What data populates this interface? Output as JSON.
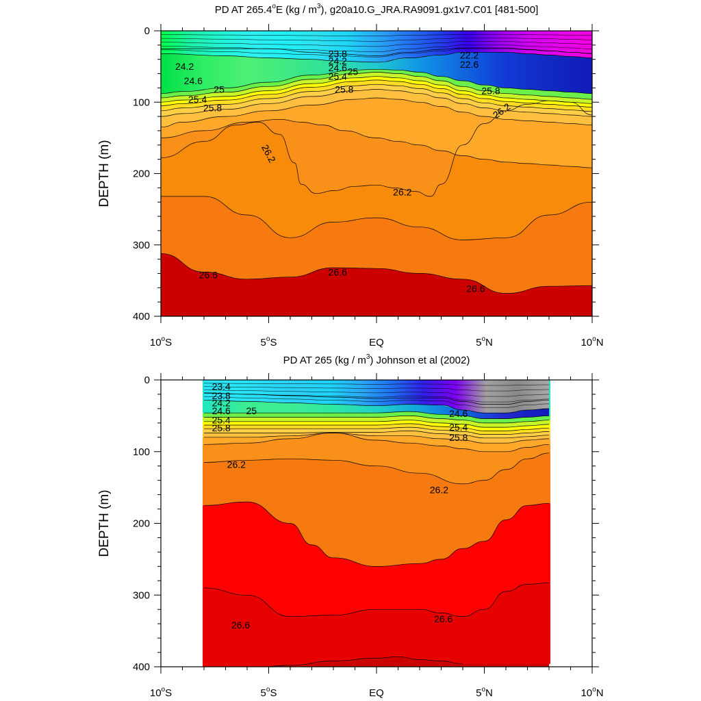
{
  "chart_data": [
    {
      "type": "contour",
      "title": "PD AT 265.4°E (kg / m³), g20a10.G_JRA.RA9091.gx1v7.C01 [481-500]",
      "title_parts": {
        "pre": "PD AT 265.4",
        "deg": "o",
        "mid": "E (kg / m",
        "sup": "3",
        "post": "), g20a10.G_JRA.RA9091.gx1v7.C01 [481-500]"
      },
      "ylabel": "DEPTH (m)",
      "xlim": [
        -10,
        10
      ],
      "ylim": [
        400,
        0
      ],
      "yticks": [
        "0",
        "100",
        "200",
        "300",
        "400"
      ],
      "xticks": [
        {
          "num": "10",
          "deg": "o",
          "hemi": "S"
        },
        {
          "num": "5",
          "deg": "o",
          "hemi": "S"
        },
        {
          "num": "EQ",
          "deg": "",
          "hemi": ""
        },
        {
          "num": "5",
          "deg": "o",
          "hemi": "N"
        },
        {
          "num": "10",
          "deg": "o",
          "hemi": "N"
        }
      ],
      "data_xrange": [
        -10,
        10
      ],
      "surface_lines": [
        {
          "x": [
            -10,
            -7,
            -5,
            -3,
            -2,
            0,
            1.5,
            3,
            4,
            5,
            6,
            7,
            8,
            9,
            10
          ],
          "y": [
            25,
            25,
            25,
            30,
            32,
            35,
            30,
            26,
            24,
            24,
            24,
            26,
            28,
            30,
            32
          ]
        },
        {
          "x": [
            -10,
            -7,
            -5,
            -3,
            -2,
            0,
            1.5,
            3,
            4,
            5,
            6,
            7,
            8,
            9,
            10
          ],
          "y": [
            32,
            35,
            38,
            40,
            42,
            44,
            38,
            34,
            30,
            30,
            30,
            32,
            34,
            36,
            38
          ]
        }
      ],
      "boundaries": [
        {
          "x": [
            -10,
            -9,
            -7,
            -5,
            -3,
            -1,
            0,
            1,
            2,
            3,
            4,
            5,
            6,
            7,
            8,
            9,
            10
          ],
          "y": [
            88,
            85,
            80,
            72,
            62,
            55,
            54,
            55,
            58,
            64,
            70,
            76,
            80,
            82,
            84,
            86,
            88
          ]
        },
        {
          "x": [
            -10,
            -9,
            -7,
            -5,
            -3,
            -1,
            0,
            1,
            2,
            3,
            4,
            5,
            6,
            7,
            8,
            9,
            10
          ],
          "y": [
            94,
            91,
            86,
            78,
            68,
            60,
            58,
            60,
            64,
            70,
            78,
            84,
            88,
            90,
            92,
            94,
            96
          ]
        },
        {
          "x": [
            -10,
            -9,
            -7,
            -5,
            -3,
            -1,
            0,
            1,
            2,
            3,
            4,
            5,
            6,
            7,
            8,
            9,
            10
          ],
          "y": [
            100,
            97,
            92,
            84,
            74,
            66,
            64,
            66,
            70,
            76,
            84,
            90,
            94,
            96,
            98,
            100,
            102
          ]
        },
        {
          "x": [
            -10,
            -9,
            -7,
            -5,
            -3,
            -1,
            0,
            1,
            2,
            3,
            4,
            5,
            6,
            7,
            8,
            9,
            10
          ],
          "y": [
            105,
            102,
            97,
            89,
            79,
            71,
            69,
            71,
            75,
            81,
            89,
            95,
            99,
            101,
            103,
            105,
            107
          ]
        },
        {
          "x": [
            -10,
            -9,
            -7,
            -5,
            -3,
            -1,
            0,
            1,
            2,
            3,
            4,
            5,
            6,
            7,
            8,
            9,
            10
          ],
          "y": [
            112,
            108,
            103,
            95,
            85,
            77,
            75,
            77,
            81,
            87,
            95,
            101,
            105,
            107,
            109,
            111,
            113
          ]
        },
        {
          "x": [
            -10,
            -9,
            -7,
            -5,
            -3,
            -1,
            0,
            1,
            2,
            3,
            4,
            5,
            6,
            7,
            8,
            9,
            10
          ],
          "y": [
            120,
            116,
            110,
            102,
            92,
            84,
            82,
            84,
            88,
            94,
            102,
            108,
            112,
            114,
            116,
            118,
            120
          ]
        },
        {
          "x": [
            -10,
            -9,
            -7,
            -5,
            -3,
            -1,
            0,
            1,
            2,
            3,
            4,
            5,
            6,
            7,
            8,
            9,
            10
          ],
          "y": [
            135,
            128,
            120,
            112,
            104,
            96,
            94,
            96,
            100,
            106,
            114,
            120,
            124,
            126,
            128,
            130,
            132
          ]
        },
        {
          "x": [
            -10,
            -8,
            -6,
            -4.5,
            -3.5,
            -2.5,
            -1.5,
            0,
            1,
            2,
            3,
            4,
            5,
            6,
            7,
            8,
            9,
            10
          ],
          "y": [
            150,
            140,
            128,
            124,
            128,
            132,
            140,
            150,
            155,
            160,
            168,
            175,
            180,
            184,
            186,
            188,
            190,
            192
          ]
        },
        {
          "x": [
            -10,
            -8,
            -6.5,
            -5.5,
            -4.5,
            -3.8,
            -3.5,
            -2.8,
            -2,
            -1,
            0,
            0.8,
            1.8,
            2.5,
            3,
            4,
            5,
            6,
            7,
            8,
            9,
            10
          ],
          "y": [
            178,
            155,
            132,
            128,
            145,
            185,
            215,
            228,
            224,
            218,
            216,
            220,
            225,
            232,
            215,
            160,
            130,
            112,
            103,
            98,
            100,
            118
          ]
        },
        {
          "x": [
            -10,
            -8,
            -6,
            -4,
            -2,
            0,
            2,
            4,
            6,
            8,
            10
          ],
          "y": [
            232,
            232,
            258,
            290,
            268,
            262,
            275,
            293,
            290,
            258,
            240
          ]
        },
        {
          "x": [
            -10,
            -8,
            -6,
            -4,
            -2,
            0,
            2,
            4,
            6,
            8,
            10
          ],
          "y": [
            312,
            338,
            348,
            345,
            332,
            333,
            340,
            348,
            368,
            358,
            357
          ]
        }
      ],
      "fills": [
        "#1EE8C4",
        "#6BEF4A",
        "#C8F52A",
        "#FFFF00",
        "#FFDD22",
        "#FFCF47",
        "#FFBF3F",
        "#FFA82A",
        "#F9901A",
        "#F88B0A",
        "#F67A10",
        "#F24B05",
        "#FE0000",
        "#E60000",
        "#CC0000"
      ],
      "contour_labels": [
        {
          "text": "24.2",
          "x": -8.9,
          "y": 50
        },
        {
          "text": "24.6",
          "x": -8.5,
          "y": 70
        },
        {
          "text": "25",
          "x": -7.3,
          "y": 82
        },
        {
          "text": "25.4",
          "x": -8.3,
          "y": 96
        },
        {
          "text": "25.8",
          "x": -7.6,
          "y": 108
        },
        {
          "text": "23.8",
          "x": -1.8,
          "y": 32
        },
        {
          "text": "24.2",
          "x": -1.8,
          "y": 42
        },
        {
          "text": "24.6",
          "x": -1.8,
          "y": 52
        },
        {
          "text": "25",
          "x": -1.1,
          "y": 57
        },
        {
          "text": "25.4",
          "x": -1.8,
          "y": 64
        },
        {
          "text": "25.8",
          "x": -1.5,
          "y": 82
        },
        {
          "text": "22.2",
          "x": 4.3,
          "y": 34
        },
        {
          "text": "22.6",
          "x": 4.3,
          "y": 47
        },
        {
          "text": "25.8",
          "x": 5.3,
          "y": 84
        },
        {
          "text": "26.2",
          "x": -5,
          "y": 172,
          "rot": 62
        },
        {
          "text": "26.2",
          "x": 1.2,
          "y": 226
        },
        {
          "text": "26.2",
          "x": 5.8,
          "y": 112,
          "rot": -35
        },
        {
          "text": "26.6",
          "x": -7.8,
          "y": 342
        },
        {
          "text": "26.6",
          "x": -1.8,
          "y": 338
        },
        {
          "text": "26.6",
          "x": 4.6,
          "y": 361
        }
      ]
    },
    {
      "type": "contour",
      "title": "PD AT 265 (kg / m³) Johnson et al (2002)",
      "title_parts": {
        "pre": "PD AT 265 (kg / m",
        "deg": "",
        "mid": "",
        "sup": "3",
        "post": ") Johnson et al (2002)"
      },
      "ylabel": "DEPTH (m)",
      "xlim": [
        -10,
        10
      ],
      "ylim": [
        400,
        0
      ],
      "yticks": [
        "0",
        "100",
        "200",
        "300",
        "400"
      ],
      "xticks": [
        {
          "num": "10",
          "deg": "o",
          "hemi": "S"
        },
        {
          "num": "5",
          "deg": "o",
          "hemi": "S"
        },
        {
          "num": "EQ",
          "deg": "",
          "hemi": ""
        },
        {
          "num": "5",
          "deg": "o",
          "hemi": "N"
        },
        {
          "num": "10",
          "deg": "o",
          "hemi": "N"
        }
      ],
      "data_xrange": [
        -8,
        8
      ],
      "surface_lines": [
        {
          "x": [
            -8,
            -6,
            -4,
            -2,
            0,
            1.5,
            3,
            4,
            5,
            6,
            7,
            8
          ],
          "y": [
            18,
            20,
            22,
            24,
            26,
            25,
            25,
            30,
            34,
            34,
            30,
            28
          ]
        },
        {
          "x": [
            -8,
            -6,
            -4,
            -2,
            0,
            1.5,
            3,
            4,
            5,
            6,
            7,
            8
          ],
          "y": [
            28,
            30,
            32,
            34,
            36,
            34,
            35,
            42,
            46,
            46,
            42,
            40
          ]
        }
      ],
      "boundaries": [
        {
          "x": [
            -8,
            -6,
            -4,
            -2,
            0,
            1.5,
            3,
            4,
            5,
            6,
            7,
            8
          ],
          "y": [
            46,
            46,
            46,
            46,
            46,
            44,
            48,
            50,
            54,
            54,
            52,
            50
          ]
        },
        {
          "x": [
            -8,
            -6,
            -4,
            -2,
            0,
            1.5,
            3,
            4,
            5,
            6,
            7,
            8
          ],
          "y": [
            52,
            52,
            52,
            52,
            52,
            50,
            54,
            56,
            60,
            60,
            58,
            56
          ]
        },
        {
          "x": [
            -8,
            -6,
            -4,
            -2,
            0,
            1.5,
            3,
            4,
            5,
            6,
            7,
            8
          ],
          "y": [
            58,
            58,
            58,
            58,
            58,
            56,
            60,
            62,
            66,
            66,
            64,
            62
          ]
        },
        {
          "x": [
            -8,
            -6,
            -4,
            -2,
            0,
            1.5,
            3,
            4,
            5,
            6,
            7,
            8
          ],
          "y": [
            63,
            63,
            63,
            63,
            63,
            61,
            65,
            67,
            71,
            71,
            69,
            67
          ]
        },
        {
          "x": [
            -8,
            -6,
            -4,
            -2,
            0,
            1.5,
            3,
            4,
            5,
            6,
            7,
            8
          ],
          "y": [
            68,
            68,
            68,
            68,
            68,
            66,
            70,
            72,
            76,
            76,
            74,
            72
          ]
        },
        {
          "x": [
            -8,
            -6,
            -4,
            -2,
            0,
            1.5,
            3,
            4,
            5,
            6,
            7,
            8
          ],
          "y": [
            74,
            74,
            74,
            73,
            73,
            71,
            75,
            77,
            81,
            81,
            79,
            77
          ]
        },
        {
          "x": [
            -8,
            -6,
            -4,
            -2,
            0,
            1.5,
            3,
            4,
            5,
            6,
            7,
            8
          ],
          "y": [
            80,
            80,
            78,
            74,
            78,
            78,
            82,
            84,
            88,
            88,
            84,
            82
          ]
        },
        {
          "x": [
            -8,
            -6,
            -4,
            -2,
            0,
            1.5,
            3,
            4,
            5,
            6,
            7,
            8
          ],
          "y": [
            90,
            88,
            82,
            74,
            84,
            88,
            92,
            96,
            100,
            100,
            94,
            90
          ]
        },
        {
          "x": [
            -8,
            -6,
            -4,
            -2,
            0,
            2,
            4,
            5,
            6,
            7,
            8
          ],
          "y": [
            115,
            112,
            110,
            112,
            120,
            130,
            145,
            140,
            125,
            110,
            102
          ]
        },
        {
          "x": [
            -8,
            -6,
            -4,
            -3,
            -2,
            0,
            2,
            3,
            4,
            5,
            6,
            7,
            8
          ],
          "y": [
            175,
            170,
            200,
            230,
            248,
            260,
            256,
            250,
            235,
            225,
            195,
            175,
            172
          ]
        },
        {
          "x": [
            -8,
            -6,
            -4,
            -2,
            0,
            2,
            3,
            4,
            5,
            6,
            7,
            8
          ],
          "y": [
            290,
            300,
            330,
            328,
            320,
            320,
            325,
            330,
            320,
            295,
            285,
            283
          ]
        },
        {
          "x": [
            -8,
            -6,
            -4,
            -2,
            0,
            1,
            2,
            3,
            4
          ],
          "y": [
            405,
            402,
            398,
            392,
            388,
            386,
            390,
            392,
            396
          ]
        }
      ],
      "fills": [
        "#1EE8C4",
        "#6BEF4A",
        "#C8F52A",
        "#FFFF00",
        "#FFDD22",
        "#FFCF47",
        "#FFBF3F",
        "#FFA82A",
        "#F9901A",
        "#F67A10",
        "#FE0000",
        "#E60000",
        "#CC0000"
      ],
      "contour_labels": [
        {
          "text": "23.4",
          "x": -7.2,
          "y": 9
        },
        {
          "text": "23.8",
          "x": -7.2,
          "y": 22
        },
        {
          "text": "24.2",
          "x": -7.2,
          "y": 32
        },
        {
          "text": "24.6",
          "x": -7.2,
          "y": 43
        },
        {
          "text": "25",
          "x": -5.8,
          "y": 43
        },
        {
          "text": "25.4",
          "x": -7.2,
          "y": 56
        },
        {
          "text": "25.8",
          "x": -7.2,
          "y": 67
        },
        {
          "text": "24.6",
          "x": 3.8,
          "y": 47
        },
        {
          "text": "25.4",
          "x": 3.8,
          "y": 66
        },
        {
          "text": "25.8",
          "x": 3.8,
          "y": 80
        },
        {
          "text": "26.2",
          "x": -6.5,
          "y": 118
        },
        {
          "text": "26.2",
          "x": 2.9,
          "y": 153
        },
        {
          "text": "26.6",
          "x": -6.3,
          "y": 342
        },
        {
          "text": "26.6",
          "x": 3.1,
          "y": 333
        }
      ]
    }
  ]
}
